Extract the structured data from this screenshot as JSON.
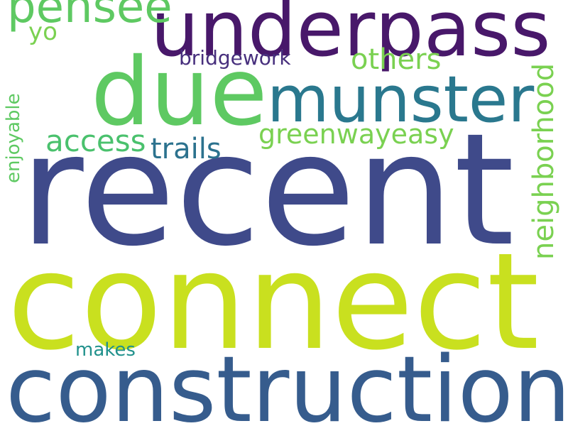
{
  "word_cloud": {
    "background": "#ffffff",
    "words": [
      {
        "key": "recent",
        "text": "recent",
        "color": "#3f4a8a"
      },
      {
        "key": "connect",
        "text": "connect",
        "color": "#c9e01f"
      },
      {
        "key": "construction",
        "text": "construction",
        "color": "#365c8d"
      },
      {
        "key": "underpass",
        "text": "underpass",
        "color": "#48186a"
      },
      {
        "key": "due",
        "text": "due",
        "color": "#5ec962"
      },
      {
        "key": "munster",
        "text": "munster",
        "color": "#2a788e"
      },
      {
        "key": "pensee",
        "text": "pensee",
        "color": "#5ec962"
      },
      {
        "key": "others",
        "text": "others",
        "color": "#7ad151"
      },
      {
        "key": "greenwayeasy",
        "text": "greenwayeasy",
        "color": "#7ad151"
      },
      {
        "key": "access",
        "text": "access",
        "color": "#4ac16d"
      },
      {
        "key": "trails",
        "text": "trails",
        "color": "#2c728e"
      },
      {
        "key": "neighborhood",
        "text": "neighborhood",
        "color": "#7ad151"
      },
      {
        "key": "bridgework",
        "text": "bridgework",
        "color": "#472f7d"
      },
      {
        "key": "yo",
        "text": "yo",
        "color": "#7ad151"
      },
      {
        "key": "enjoyable",
        "text": "enjoyable",
        "color": "#5ec962"
      },
      {
        "key": "makes",
        "text": "makes",
        "color": "#21918c"
      }
    ]
  }
}
